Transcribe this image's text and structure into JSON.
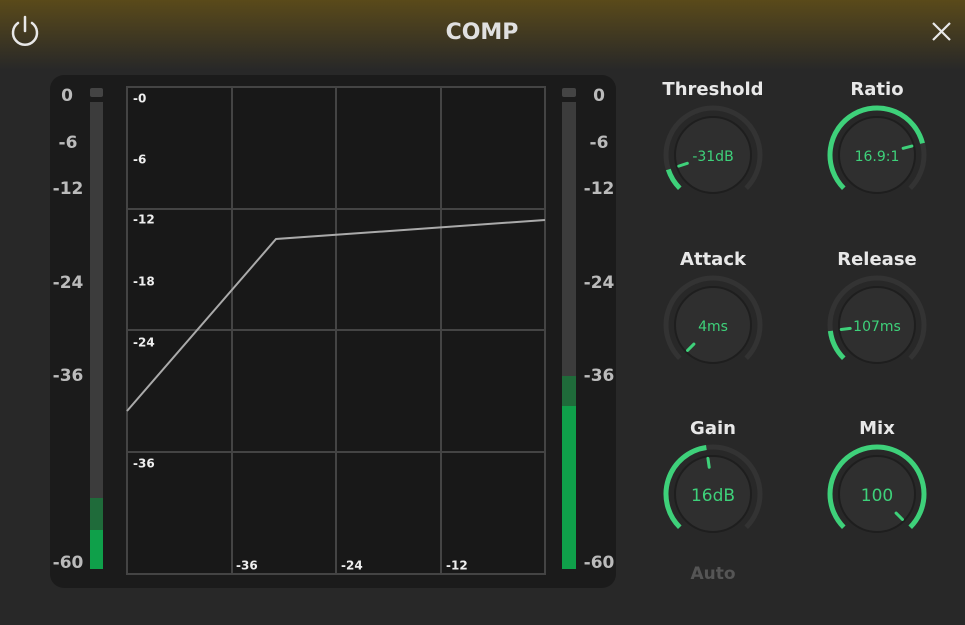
{
  "header": {
    "title": "COMP"
  },
  "input_meter": {
    "scale": [
      "0",
      "-6",
      "-12",
      "-24",
      "-36",
      "-60"
    ]
  },
  "graph": {
    "y_labels": [
      "-0",
      "-6",
      "-12",
      "-18",
      "-24",
      "-36"
    ],
    "x_labels": [
      "-36",
      "-24",
      "-12"
    ]
  },
  "output_meter": {
    "scale": [
      "0",
      "-6",
      "-12",
      "-24",
      "-36",
      "-60"
    ]
  },
  "knobs": [
    {
      "label": "Threshold",
      "value": "-31dB"
    },
    {
      "label": "Ratio",
      "value": "16.9:1"
    },
    {
      "label": "Attack",
      "value": "4ms"
    },
    {
      "label": "Release",
      "value": "107ms"
    },
    {
      "label": "Gain",
      "value": "16dB"
    },
    {
      "label": "Mix",
      "value": "100"
    }
  ],
  "auto": "Auto"
}
